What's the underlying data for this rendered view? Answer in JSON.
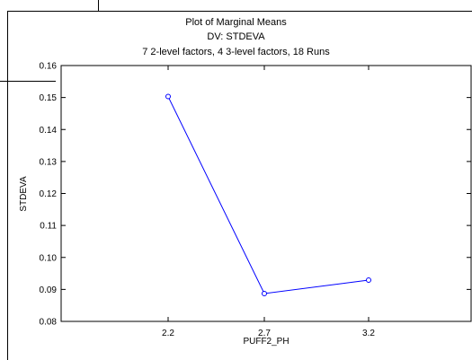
{
  "chart_data": {
    "type": "line",
    "title": "Plot of Marginal Means",
    "subtitle_lines": [
      "DV: STDEVA",
      "7 2-level factors, 4 3-level factors, 18 Runs"
    ],
    "xlabel": "PUFF2_PH",
    "ylabel": "STDEVA",
    "categories": [
      "2.2",
      "2.7",
      "3.2"
    ],
    "series": [
      {
        "values": [
          0.1503,
          0.0887,
          0.0929
        ]
      }
    ],
    "ylim": [
      0.08,
      0.16
    ],
    "yticks": [
      "0.08",
      "0.09",
      "0.10",
      "0.11",
      "0.12",
      "0.13",
      "0.14",
      "0.15",
      "0.16"
    ],
    "grid": false,
    "line_color": "#0000ff",
    "marker": "open-circle"
  }
}
